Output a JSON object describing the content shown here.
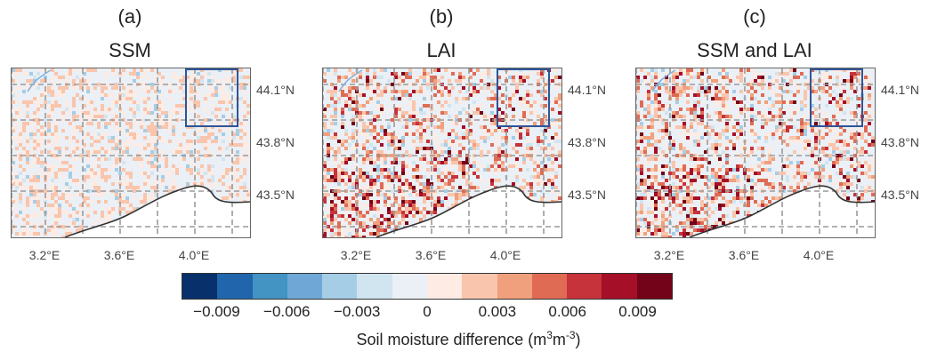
{
  "panels": [
    {
      "label": "(a)",
      "title": "SSM",
      "intensity": 0.25
    },
    {
      "label": "(b)",
      "title": "LAI",
      "intensity": 1.0
    },
    {
      "label": "(c)",
      "title": "SSM and LAI",
      "intensity": 1.0
    }
  ],
  "lat_labels": [
    "44.1°N",
    "43.8°N",
    "43.5°N"
  ],
  "lon_labels": [
    "3.2°E",
    "3.6°E",
    "4.0°E"
  ],
  "colorbar": {
    "colors": [
      "#08306b",
      "#2166ac",
      "#4393c3",
      "#6fa8d6",
      "#a6cde6",
      "#d1e5f0",
      "#eaf0f6",
      "#fdebe4",
      "#f9c5ac",
      "#f0a07c",
      "#df6b55",
      "#c7333b",
      "#a50f28",
      "#730318"
    ],
    "ticks": [
      "−0.009",
      "−0.006",
      "−0.003",
      "0",
      "0.003",
      "0.006",
      "0.009"
    ],
    "label_main": "Soil moisture difference (m",
    "label_sup1": "3",
    "label_mid": "m",
    "label_sup2": "-3",
    "label_end": ")"
  }
}
